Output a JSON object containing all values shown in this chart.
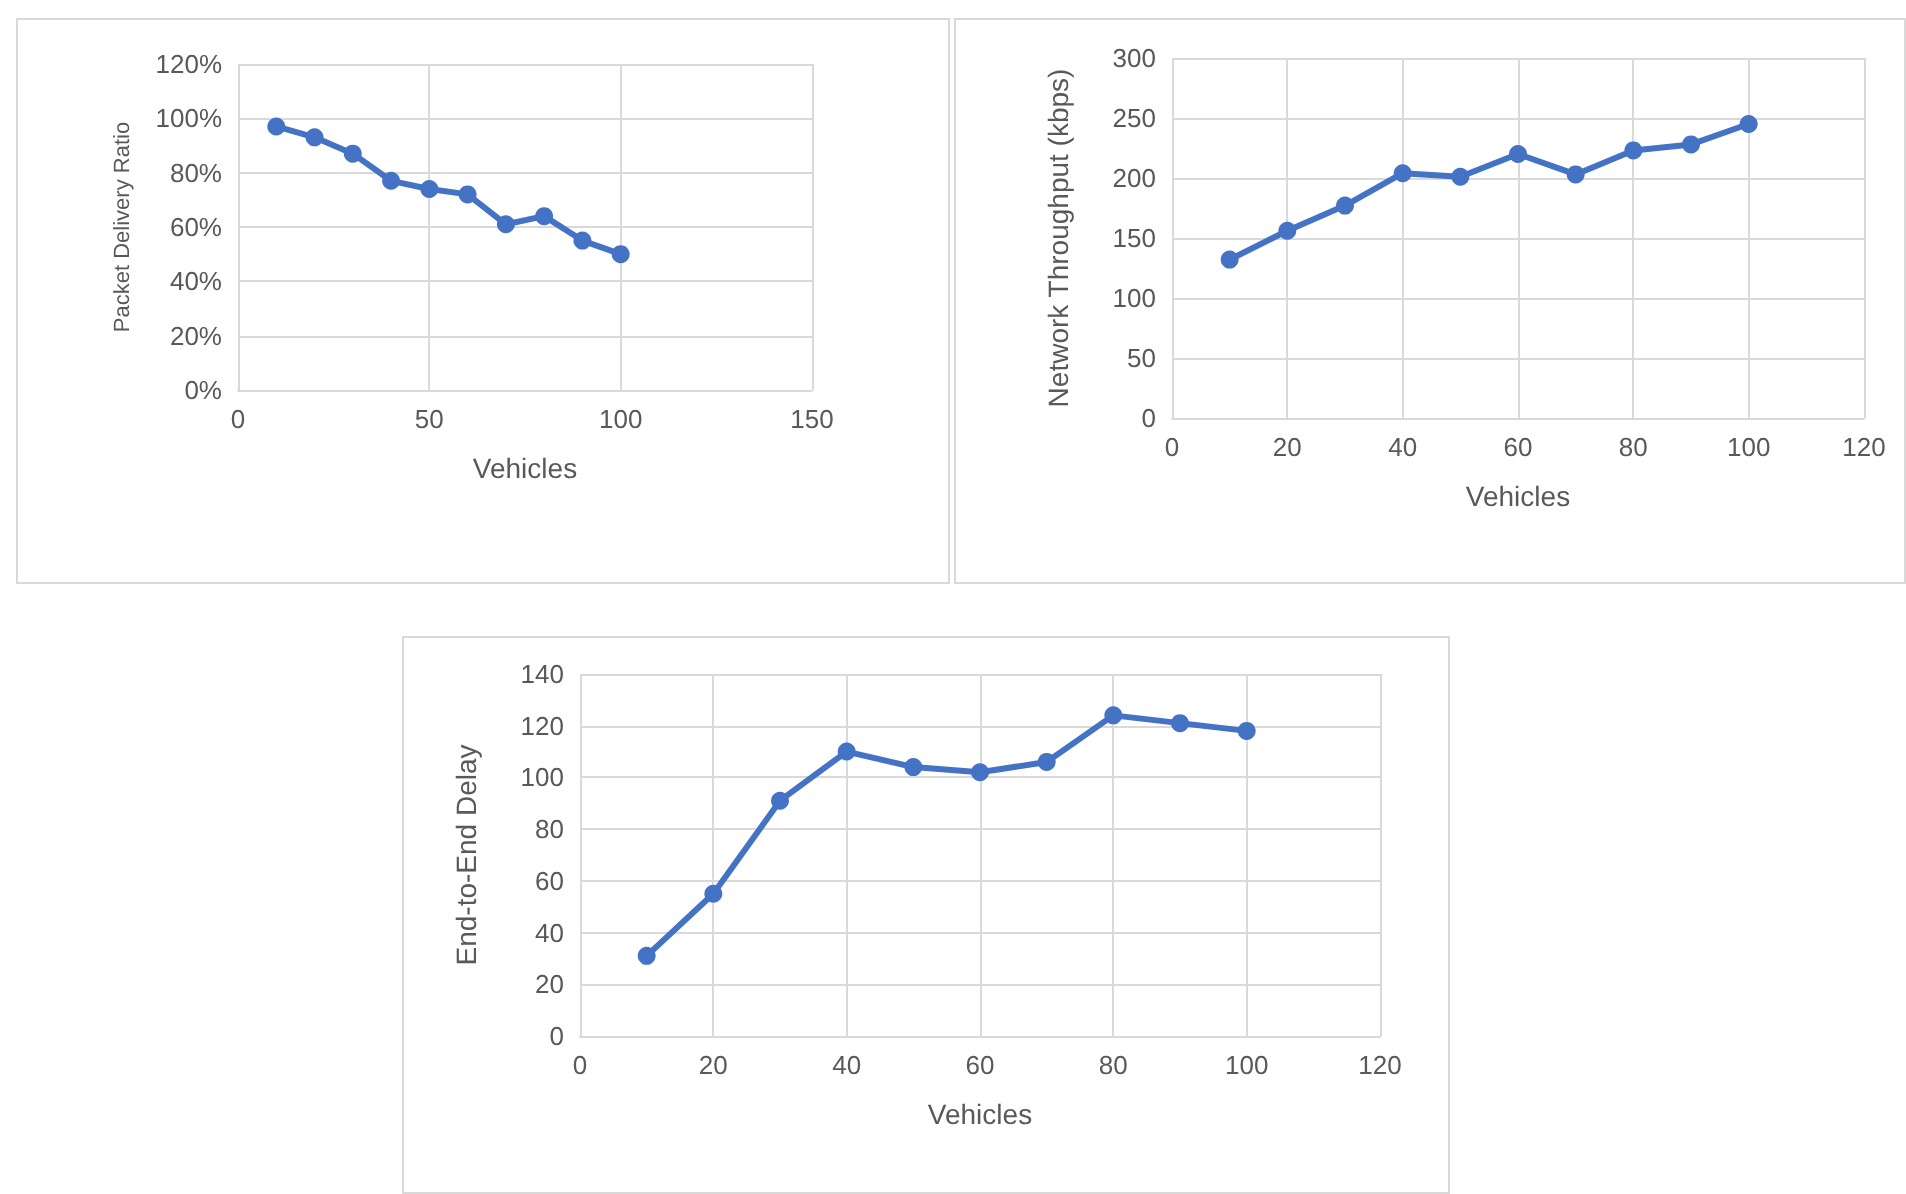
{
  "chart_data": [
    {
      "type": "line",
      "xlabel": "Vehicles",
      "ylabel": "Packet Delivery Ratio",
      "x": [
        10,
        20,
        30,
        40,
        50,
        60,
        70,
        80,
        90,
        100
      ],
      "series": [
        {
          "color": "#4472c4",
          "values": [
            97,
            93,
            87,
            77,
            74,
            72,
            61,
            64,
            55,
            50
          ]
        }
      ],
      "xlim": [
        0,
        150
      ],
      "xticks": [
        0,
        50,
        100,
        150
      ],
      "ylim": [
        0,
        120
      ],
      "yticks": [
        {
          "value": 0,
          "label": "0%"
        },
        {
          "value": 20,
          "label": "20%"
        },
        {
          "value": 40,
          "label": "40%"
        },
        {
          "value": 60,
          "label": "60%"
        },
        {
          "value": 80,
          "label": "80%"
        },
        {
          "value": 100,
          "label": "100%"
        },
        {
          "value": 120,
          "label": "120%"
        }
      ],
      "grid": true,
      "marker": "circle",
      "line_style": "solid"
    },
    {
      "type": "line",
      "xlabel": "Vehicles",
      "ylabel": "Network Throughput (kbps)",
      "x": [
        10,
        20,
        30,
        40,
        50,
        60,
        70,
        80,
        90,
        100
      ],
      "series": [
        {
          "color": "#4472c4",
          "values": [
            132,
            156,
            177,
            204,
            201,
            220,
            203,
            223,
            228,
            245
          ]
        }
      ],
      "xlim": [
        0,
        120
      ],
      "xticks": [
        0,
        20,
        40,
        60,
        80,
        100,
        120
      ],
      "ylim": [
        0,
        300
      ],
      "yticks": [
        0,
        50,
        100,
        150,
        200,
        250,
        300
      ],
      "grid": true,
      "marker": "circle",
      "line_style": "solid"
    },
    {
      "type": "line",
      "xlabel": "Vehicles",
      "ylabel": "End-to-End Delay",
      "x": [
        10,
        20,
        30,
        40,
        50,
        60,
        70,
        80,
        90,
        100
      ],
      "series": [
        {
          "color": "#4472c4",
          "values": [
            31,
            55,
            91,
            110,
            104,
            102,
            106,
            124,
            121,
            118
          ]
        }
      ],
      "xlim": [
        0,
        120
      ],
      "xticks": [
        0,
        20,
        40,
        60,
        80,
        100,
        120
      ],
      "ylim": [
        0,
        140
      ],
      "yticks": [
        0,
        20,
        40,
        60,
        80,
        100,
        120,
        140
      ],
      "grid": true,
      "marker": "circle",
      "line_style": "solid"
    }
  ]
}
